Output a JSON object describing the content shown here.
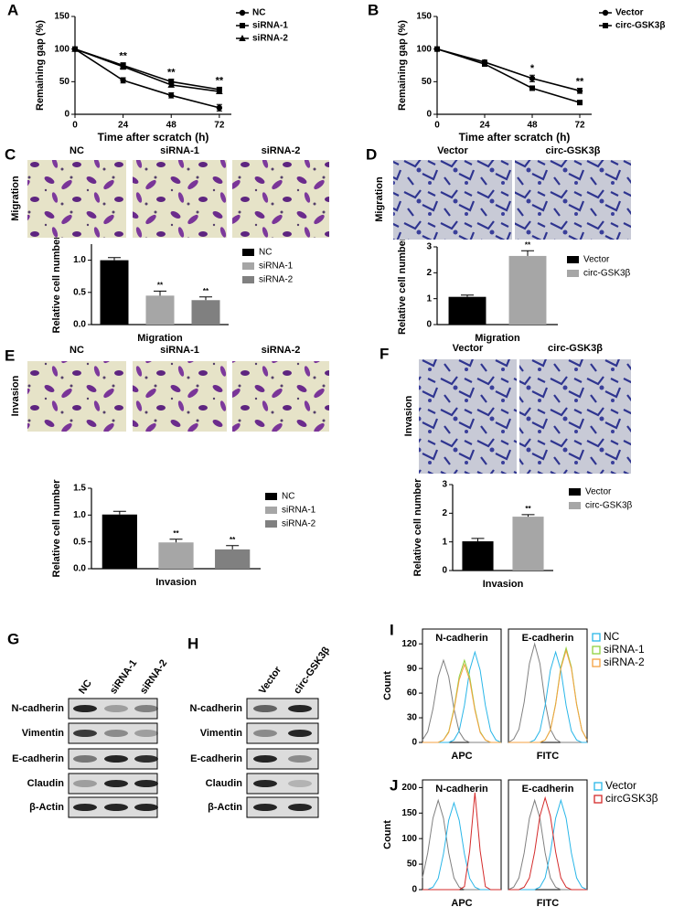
{
  "chart_data": [
    {
      "type": "line",
      "label": "A",
      "x_label": "Time after scratch (h)",
      "y_label": "Remaining gap (%)",
      "x": [
        0,
        24,
        48,
        72
      ],
      "xlim": [
        0,
        78
      ],
      "xticks": [
        0,
        24,
        48,
        72
      ],
      "ylim": [
        0,
        150
      ],
      "yticks": [
        0,
        50,
        100,
        150
      ],
      "series": [
        {
          "name": "NC",
          "color": "#000000",
          "marker": "circle",
          "values": [
            100,
            52,
            29,
            10
          ],
          "errors": [
            0,
            4,
            4,
            5
          ]
        },
        {
          "name": "siRNA-1",
          "color": "#000000",
          "marker": "square",
          "values": [
            100,
            75,
            50,
            38
          ],
          "errors": [
            0,
            4,
            4,
            3
          ]
        },
        {
          "name": "siRNA-2",
          "color": "#000000",
          "marker": "triangle",
          "values": [
            100,
            73,
            45,
            35
          ],
          "errors": [
            0,
            4,
            3,
            3
          ]
        }
      ],
      "annotations": [
        {
          "x": 24,
          "text": "**"
        },
        {
          "x": 48,
          "text": "**"
        },
        {
          "x": 72,
          "text": "**"
        }
      ]
    },
    {
      "type": "line",
      "label": "B",
      "x_label": "Time after scratch (h)",
      "y_label": "Remaining gap (%)",
      "x": [
        0,
        24,
        48,
        72
      ],
      "xlim": [
        0,
        78
      ],
      "xticks": [
        0,
        24,
        48,
        72
      ],
      "ylim": [
        0,
        150
      ],
      "yticks": [
        0,
        50,
        100,
        150
      ],
      "series": [
        {
          "name": "Vector",
          "color": "#000000",
          "marker": "circle",
          "values": [
            100,
            80,
            55,
            36
          ],
          "errors": [
            0,
            3,
            5,
            4
          ]
        },
        {
          "name": "circ-GSK3β",
          "color": "#000000",
          "marker": "square",
          "values": [
            100,
            77,
            40,
            18
          ],
          "errors": [
            0,
            3,
            3,
            3
          ]
        }
      ],
      "annotations": [
        {
          "x": 48,
          "text": "*"
        },
        {
          "x": 72,
          "text": "**"
        }
      ]
    },
    {
      "type": "bar",
      "x_label": "Migration",
      "y_label": "Relative cell number",
      "categories": [
        "NC",
        "siRNA-1",
        "siRNA-2"
      ],
      "values": [
        1.0,
        0.45,
        0.38
      ],
      "errors": [
        0.04,
        0.07,
        0.05
      ],
      "colors": [
        "#000000",
        "#a6a6a6",
        "#808080"
      ],
      "ylim": [
        0,
        1.25
      ],
      "yticks": [
        {
          "value": 0,
          "label": "0.0"
        },
        {
          "value": 0.5,
          "label": "0.5"
        },
        {
          "value": 1,
          "label": "1.0"
        }
      ],
      "value_annotations": [
        null,
        "**",
        "**"
      ]
    },
    {
      "type": "bar",
      "x_label": "Migration",
      "y_label": "Relative cell number",
      "categories": [
        "Vector",
        "circ-GSK3β"
      ],
      "values": [
        1.07,
        2.65
      ],
      "errors": [
        0.07,
        0.2
      ],
      "colors": [
        "#000000",
        "#a6a6a6"
      ],
      "ylim": [
        0,
        3
      ],
      "yticks": [
        0,
        1,
        2,
        3
      ],
      "value_annotations": [
        null,
        "**"
      ]
    },
    {
      "type": "bar",
      "x_label": "Invasion",
      "y_label": "Relative cell number",
      "categories": [
        "NC",
        "siRNA-1",
        "siRNA-2"
      ],
      "values": [
        1.01,
        0.49,
        0.36
      ],
      "errors": [
        0.06,
        0.06,
        0.07
      ],
      "colors": [
        "#000000",
        "#a6a6a6",
        "#808080"
      ],
      "ylim": [
        0,
        1.5
      ],
      "yticks": [
        {
          "value": 0,
          "label": "0.0"
        },
        {
          "value": 0.5,
          "label": "0.5"
        },
        {
          "value": 1,
          "label": "1.0"
        },
        {
          "value": 1.5,
          "label": "1.5"
        }
      ],
      "value_annotations": [
        null,
        "**",
        "**"
      ]
    },
    {
      "type": "bar",
      "x_label": "Invasion",
      "y_label": "Relative cell number",
      "categories": [
        "Vector",
        "circ-GSK3β"
      ],
      "values": [
        1.02,
        1.88
      ],
      "errors": [
        0.1,
        0.07
      ],
      "colors": [
        "#000000",
        "#a6a6a6"
      ],
      "ylim": [
        0,
        3
      ],
      "yticks": [
        0,
        1,
        2,
        3
      ],
      "value_annotations": [
        null,
        "**"
      ]
    },
    {
      "type": "line",
      "label": "I",
      "title": "N-cadherin",
      "x_label": "APC",
      "y_label": "Count",
      "categories": [
        null,
        null,
        null,
        null,
        null,
        null,
        null,
        null,
        null,
        null,
        null,
        null,
        null,
        null,
        null,
        null
      ],
      "ylim": [
        0,
        138
      ],
      "yticks": [
        0,
        30,
        60,
        90,
        120
      ],
      "series": [
        {
          "color": "#808080",
          "values": [
            3,
            13,
            41,
            80,
            100,
            80,
            41,
            13,
            3,
            0,
            0,
            0,
            0,
            0,
            0,
            0
          ]
        },
        {
          "color": "#29b6e8",
          "values": [
            0,
            0,
            0,
            0,
            0,
            0,
            3,
            14,
            45,
            88,
            110,
            88,
            45,
            14,
            3,
            0
          ]
        },
        {
          "color": "#8fd13f",
          "values": [
            0,
            0,
            0,
            0,
            3,
            13,
            41,
            80,
            100,
            80,
            41,
            13,
            3,
            0,
            0,
            0
          ]
        },
        {
          "color": "#f5a040",
          "values": [
            0,
            0,
            0,
            0,
            3,
            12,
            39,
            76,
            95,
            76,
            39,
            12,
            3,
            0,
            0,
            0
          ]
        }
      ]
    },
    {
      "type": "line",
      "title": "E-cadherin",
      "x_label": "FITC",
      "categories": [
        null,
        null,
        null,
        null,
        null,
        null,
        null,
        null,
        null,
        null,
        null,
        null,
        null,
        null,
        null,
        null
      ],
      "ylim": [
        0,
        138
      ],
      "series": [
        {
          "color": "#808080",
          "values": [
            0,
            4,
            16,
            49,
            96,
            120,
            96,
            49,
            16,
            4,
            0,
            0,
            0,
            0,
            0,
            0
          ]
        },
        {
          "name": "NC",
          "color": "#29b6e8",
          "values": [
            0,
            0,
            0,
            0,
            0,
            3,
            14,
            45,
            88,
            110,
            88,
            45,
            14,
            3,
            0,
            0
          ]
        },
        {
          "name": "siRNA-1",
          "color": "#8fd13f",
          "values": [
            0,
            0,
            0,
            0,
            0,
            0,
            0,
            3,
            15,
            47,
            92,
            115,
            92,
            47,
            15,
            3
          ]
        },
        {
          "name": "siRNA-2",
          "color": "#f5a040",
          "values": [
            0,
            0,
            0,
            0,
            0,
            0,
            0,
            3,
            15,
            46,
            90,
            112,
            90,
            46,
            15,
            3
          ]
        }
      ]
    },
    {
      "type": "line",
      "label": "J",
      "title": "N-cadherin",
      "x_label": "APC",
      "y_label": "Count",
      "categories": [
        null,
        null,
        null,
        null,
        null,
        null,
        null,
        null,
        null,
        null,
        null,
        null,
        null,
        null,
        null,
        null
      ],
      "ylim": [
        0,
        215
      ],
      "yticks": [
        0,
        50,
        100,
        150,
        200
      ],
      "series": [
        {
          "color": "#808080",
          "values": [
            23,
            72,
            140,
            175,
            140,
            72,
            23,
            5,
            0,
            0,
            0,
            0,
            0,
            0,
            0,
            0
          ]
        },
        {
          "color": "#29b6e8",
          "values": [
            0,
            0,
            5,
            22,
            70,
            136,
            170,
            136,
            70,
            22,
            5,
            0,
            0,
            0,
            0,
            0
          ]
        },
        {
          "color": "#d42a2a",
          "values": [
            0,
            0,
            0,
            0,
            0,
            0,
            0,
            0,
            6,
            76,
            190,
            76,
            6,
            0,
            0,
            0
          ]
        }
      ]
    },
    {
      "type": "line",
      "title": "E-cadherin",
      "x_label": "FITC",
      "categories": [
        null,
        null,
        null,
        null,
        null,
        null,
        null,
        null,
        null,
        null,
        null,
        null,
        null,
        null,
        null,
        null
      ],
      "ylim": [
        0,
        215
      ],
      "series": [
        {
          "color": "#808080",
          "values": [
            0,
            5,
            23,
            72,
            140,
            175,
            140,
            72,
            23,
            5,
            0,
            0,
            0,
            0,
            0,
            0
          ]
        },
        {
          "name": "Vector",
          "color": "#29b6e8",
          "values": [
            0,
            0,
            0,
            0,
            0,
            0,
            5,
            23,
            72,
            140,
            175,
            140,
            72,
            23,
            5,
            0
          ]
        },
        {
          "name": "circGSK3β",
          "color": "#d42a2a",
          "values": [
            0,
            0,
            0,
            5,
            23,
            74,
            144,
            180,
            144,
            74,
            23,
            5,
            0,
            0,
            0,
            0
          ]
        }
      ]
    }
  ],
  "micrographs": [
    {
      "label": "C",
      "side_label": "Migration",
      "columns": [
        "NC",
        "siRNA-1",
        "siRNA-2"
      ]
    },
    {
      "label": "D",
      "side_label": "Migration",
      "columns": [
        "Vector",
        "circ-GSK3β"
      ]
    },
    {
      "label": "E",
      "side_label": "Invasion",
      "columns": [
        "NC",
        "siRNA-1",
        "siRNA-2"
      ]
    },
    {
      "label": "F",
      "side_label": "Invasion",
      "columns": [
        "Vector",
        "circ-GSK3β"
      ]
    }
  ],
  "blots": [
    {
      "label": "G",
      "columns": [
        "NC",
        "siRNA-1",
        "siRNA-2"
      ],
      "rows": [
        "N-cadherin",
        "Vimentin",
        "E-cadherin",
        "Claudin",
        "β-Actin"
      ]
    },
    {
      "label": "H",
      "columns": [
        "Vector",
        "circ-GSK3β"
      ],
      "rows": [
        "N-cadherin",
        "Vimentin",
        "E-cadherin",
        "Claudin",
        "β-Actin"
      ]
    }
  ]
}
